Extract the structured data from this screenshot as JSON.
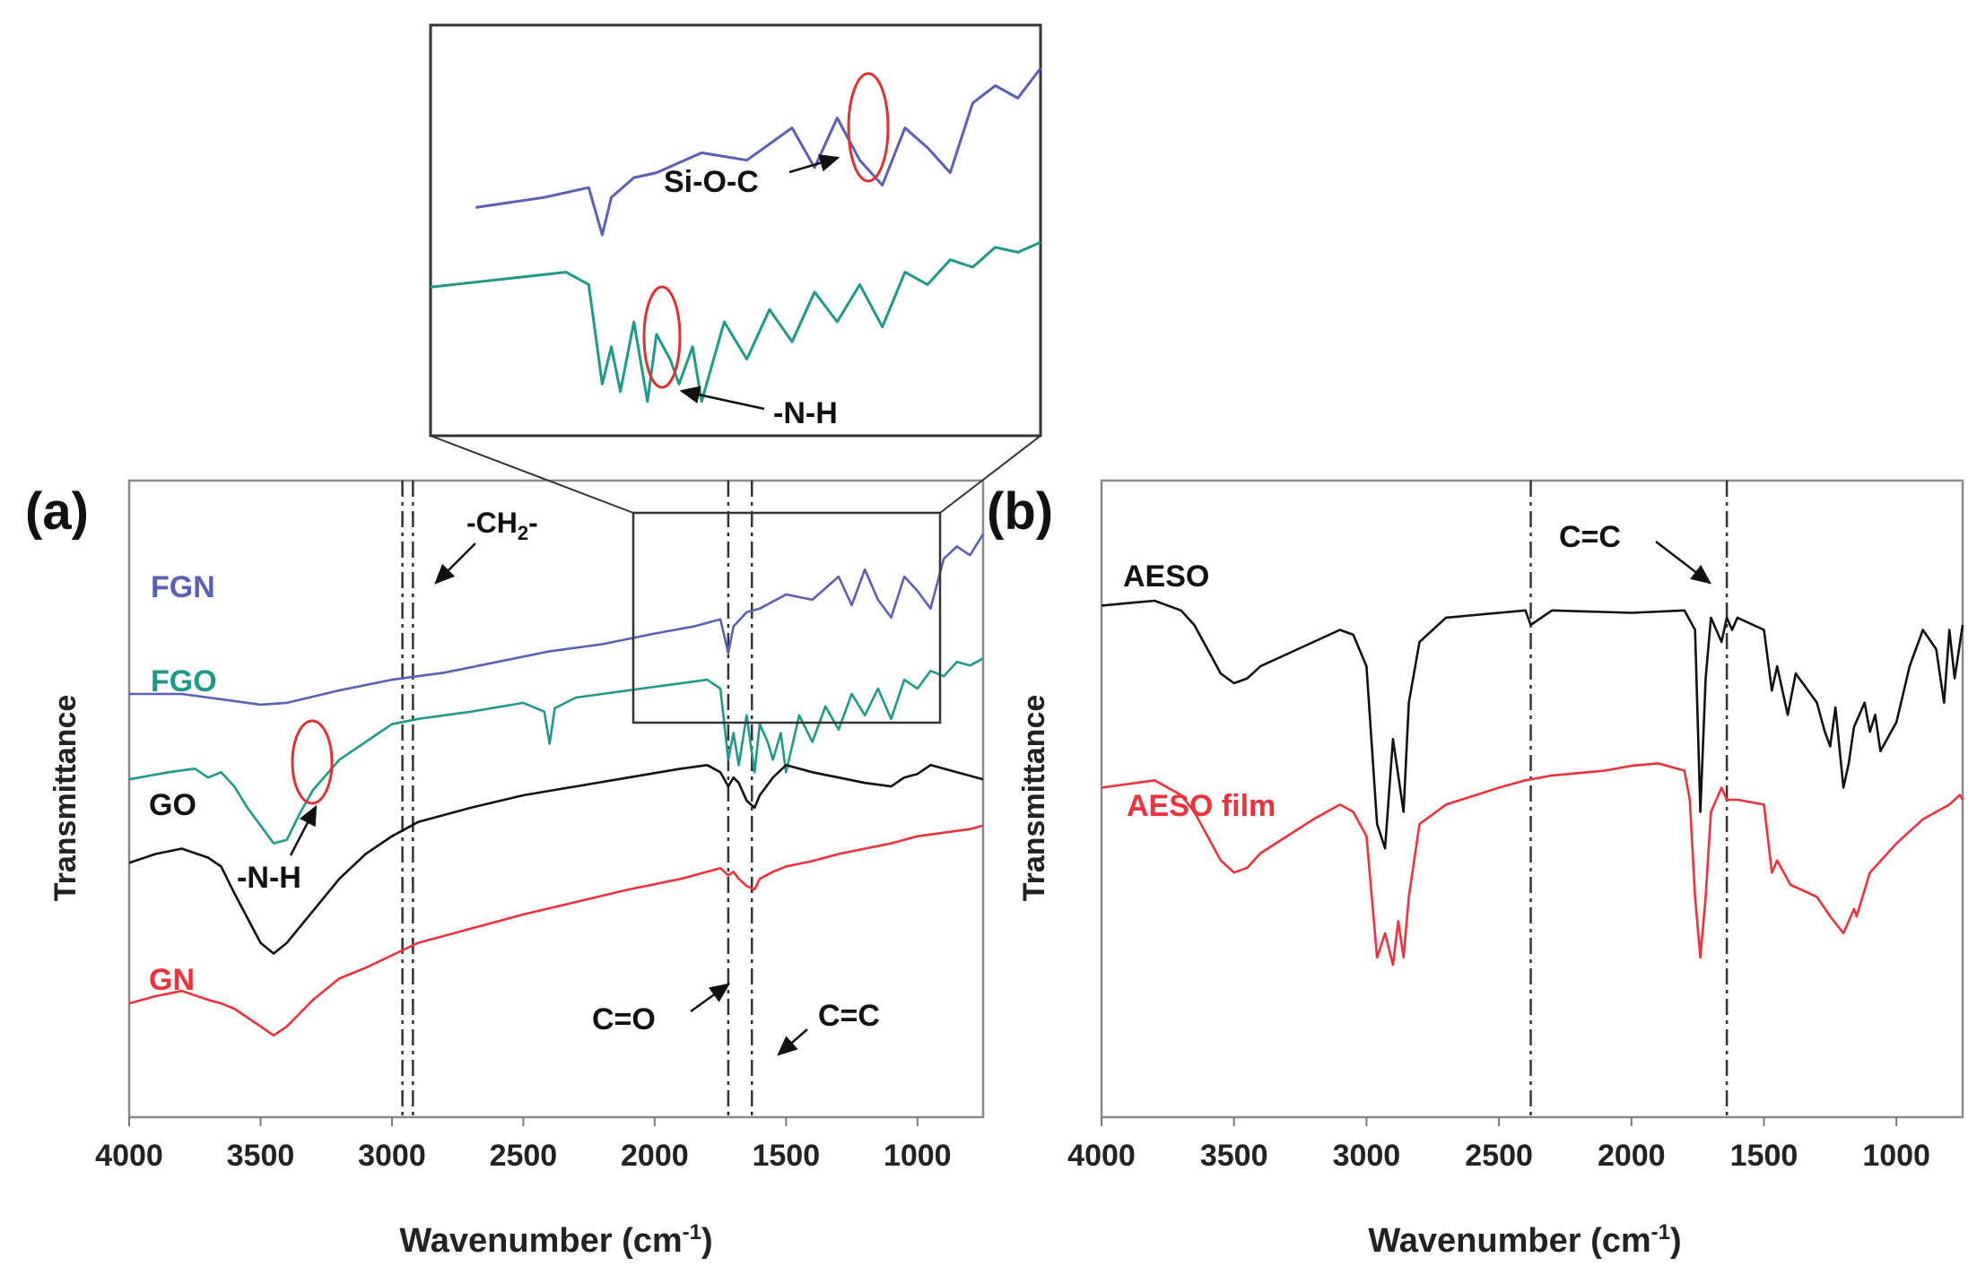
{
  "colors": {
    "FGN": "#5a5fb8",
    "FGO": "#1d9a8a",
    "GO": "#111111",
    "GN": "#f0303a",
    "AESO": "#111111",
    "AESO_film": "#f0303a",
    "axis": "#777777",
    "marker": "#e03030"
  },
  "chart_data": [
    {
      "panel": "(a)",
      "type": "line",
      "xlabel": "Wavenumber (cm",
      "xlabel_sup": "-1",
      "xlabel_close": ")",
      "ylabel": "Transmittance",
      "xlim": [
        4000,
        750
      ],
      "xticks": [
        4000,
        3500,
        3000,
        2500,
        2000,
        1500,
        1000
      ],
      "grid": false,
      "legend": "inline labels",
      "series": [
        {
          "name": "FGN",
          "key": "FGN",
          "x": [
            4000,
            3800,
            3600,
            3500,
            3400,
            3200,
            3000,
            2800,
            2600,
            2400,
            2200,
            2000,
            1850,
            1750,
            1720,
            1700,
            1650,
            1600,
            1500,
            1400,
            1300,
            1250,
            1200,
            1150,
            1100,
            1050,
            1000,
            950,
            900,
            850,
            800,
            750
          ],
          "y": [
            0.02,
            0.02,
            -0.02,
            -0.04,
            -0.03,
            0.04,
            0.1,
            0.14,
            0.2,
            0.26,
            0.3,
            0.36,
            0.4,
            0.44,
            0.25,
            0.4,
            0.48,
            0.5,
            0.58,
            0.55,
            0.68,
            0.52,
            0.72,
            0.55,
            0.45,
            0.68,
            0.6,
            0.5,
            0.78,
            0.85,
            0.8,
            0.92
          ]
        },
        {
          "name": "FGO",
          "key": "FGO",
          "x": [
            4000,
            3850,
            3750,
            3700,
            3650,
            3600,
            3550,
            3500,
            3450,
            3400,
            3350,
            3300,
            3200,
            3100,
            3000,
            2900,
            2700,
            2500,
            2420,
            2400,
            2380,
            2300,
            2100,
            1900,
            1800,
            1750,
            1720,
            1700,
            1680,
            1650,
            1620,
            1600,
            1570,
            1550,
            1520,
            1500,
            1450,
            1400,
            1350,
            1300,
            1250,
            1200,
            1150,
            1100,
            1050,
            1000,
            950,
            900,
            850,
            800,
            750
          ],
          "y": [
            -0.46,
            -0.42,
            -0.4,
            -0.45,
            -0.42,
            -0.5,
            -0.62,
            -0.72,
            -0.82,
            -0.8,
            -0.65,
            -0.52,
            -0.35,
            -0.25,
            -0.15,
            -0.12,
            -0.08,
            -0.03,
            -0.08,
            -0.26,
            -0.06,
            0.0,
            0.04,
            0.08,
            0.1,
            0.05,
            -0.35,
            -0.2,
            -0.38,
            -0.1,
            -0.42,
            -0.15,
            -0.25,
            -0.35,
            -0.2,
            -0.42,
            -0.1,
            -0.25,
            -0.05,
            -0.18,
            0.02,
            -0.1,
            0.05,
            -0.12,
            0.1,
            0.05,
            0.15,
            0.12,
            0.2,
            0.18,
            0.22
          ]
        },
        {
          "name": "GO",
          "key": "GO",
          "x": [
            4000,
            3900,
            3800,
            3700,
            3650,
            3600,
            3500,
            3450,
            3400,
            3300,
            3200,
            3100,
            3000,
            2900,
            2700,
            2500,
            2300,
            2100,
            1900,
            1800,
            1750,
            1720,
            1700,
            1680,
            1650,
            1620,
            1600,
            1550,
            1500,
            1400,
            1300,
            1200,
            1100,
            1050,
            1000,
            950,
            900,
            850,
            800,
            750
          ],
          "y": [
            -0.93,
            -0.88,
            -0.85,
            -0.9,
            -0.95,
            -1.1,
            -1.38,
            -1.44,
            -1.38,
            -1.2,
            -1.02,
            -0.88,
            -0.78,
            -0.7,
            -0.62,
            -0.55,
            -0.5,
            -0.45,
            -0.4,
            -0.38,
            -0.42,
            -0.5,
            -0.45,
            -0.48,
            -0.58,
            -0.62,
            -0.55,
            -0.45,
            -0.38,
            -0.42,
            -0.45,
            -0.48,
            -0.5,
            -0.45,
            -0.43,
            -0.38,
            -0.4,
            -0.42,
            -0.44,
            -0.46
          ]
        },
        {
          "name": "GN",
          "key": "GN",
          "x": [
            4000,
            3900,
            3800,
            3700,
            3650,
            3600,
            3500,
            3450,
            3400,
            3300,
            3200,
            3100,
            3000,
            2900,
            2700,
            2500,
            2300,
            2100,
            1900,
            1800,
            1750,
            1720,
            1700,
            1680,
            1650,
            1620,
            1600,
            1550,
            1500,
            1400,
            1300,
            1200,
            1100,
            1000,
            900,
            800,
            750
          ],
          "y": [
            -1.72,
            -1.68,
            -1.65,
            -1.7,
            -1.72,
            -1.75,
            -1.85,
            -1.9,
            -1.85,
            -1.7,
            -1.58,
            -1.52,
            -1.45,
            -1.38,
            -1.3,
            -1.22,
            -1.15,
            -1.08,
            -1.02,
            -0.98,
            -0.96,
            -1.0,
            -0.98,
            -1.02,
            -1.06,
            -1.08,
            -1.02,
            -0.98,
            -0.95,
            -0.92,
            -0.88,
            -0.85,
            -0.82,
            -0.78,
            -0.76,
            -0.74,
            -0.72
          ]
        }
      ],
      "vlines": [
        2960,
        2920,
        1720,
        1630
      ],
      "inset": {
        "x_range": [
          2100,
          750
        ]
      },
      "annotations": [
        {
          "text": "-CH",
          "sub": "2",
          "tail": "-"
        },
        {
          "text": "-N-H"
        },
        {
          "text": "C=O"
        },
        {
          "text": "C=C"
        },
        {
          "text": "Si-O-C"
        },
        {
          "text": "-N-H"
        }
      ]
    },
    {
      "panel": "(b)",
      "type": "line",
      "xlabel": "Wavenumber (cm",
      "xlabel_sup": "-1",
      "xlabel_close": ")",
      "ylabel": "Transmittance",
      "xlim": [
        4000,
        750
      ],
      "xticks": [
        4000,
        3500,
        3000,
        2500,
        2000,
        1500,
        1000
      ],
      "grid": false,
      "legend": "inline labels",
      "series": [
        {
          "name": "AESO",
          "key": "AESO",
          "x": [
            4000,
            3800,
            3700,
            3650,
            3600,
            3550,
            3500,
            3450,
            3400,
            3300,
            3200,
            3100,
            3050,
            3000,
            2960,
            2930,
            2900,
            2880,
            2860,
            2840,
            2800,
            2700,
            2500,
            2400,
            2380,
            2300,
            2000,
            1800,
            1760,
            1740,
            1720,
            1700,
            1660,
            1640,
            1620,
            1600,
            1500,
            1470,
            1450,
            1410,
            1380,
            1300,
            1270,
            1250,
            1230,
            1200,
            1180,
            1160,
            1120,
            1100,
            1080,
            1060,
            1000,
            950,
            900,
            850,
            820,
            800,
            780,
            750
          ],
          "y": [
            0.0,
            0.02,
            -0.02,
            -0.08,
            -0.18,
            -0.28,
            -0.32,
            -0.3,
            -0.25,
            -0.2,
            -0.15,
            -0.1,
            -0.12,
            -0.25,
            -0.9,
            -1.0,
            -0.55,
            -0.7,
            -0.85,
            -0.4,
            -0.15,
            -0.05,
            -0.03,
            -0.02,
            -0.08,
            -0.02,
            -0.03,
            -0.02,
            -0.1,
            -0.85,
            -0.3,
            -0.05,
            -0.15,
            -0.05,
            -0.1,
            -0.05,
            -0.1,
            -0.35,
            -0.25,
            -0.45,
            -0.28,
            -0.4,
            -0.52,
            -0.58,
            -0.42,
            -0.75,
            -0.65,
            -0.5,
            -0.4,
            -0.52,
            -0.45,
            -0.6,
            -0.48,
            -0.25,
            -0.1,
            -0.18,
            -0.4,
            -0.1,
            -0.3,
            -0.08
          ]
        },
        {
          "name": "AESO film",
          "key": "AESO_film",
          "x": [
            4000,
            3800,
            3700,
            3650,
            3600,
            3550,
            3500,
            3450,
            3400,
            3300,
            3200,
            3100,
            3050,
            3000,
            2960,
            2930,
            2900,
            2880,
            2860,
            2840,
            2800,
            2700,
            2500,
            2400,
            2300,
            2100,
            2000,
            1900,
            1800,
            1780,
            1760,
            1740,
            1720,
            1700,
            1660,
            1640,
            1600,
            1500,
            1470,
            1450,
            1400,
            1300,
            1250,
            1200,
            1180,
            1160,
            1150,
            1100,
            1000,
            900,
            850,
            800,
            760,
            750
          ],
          "y": [
            -0.75,
            -0.72,
            -0.78,
            -0.85,
            -0.95,
            -1.05,
            -1.1,
            -1.08,
            -1.02,
            -0.95,
            -0.88,
            -0.82,
            -0.85,
            -0.95,
            -1.45,
            -1.35,
            -1.48,
            -1.3,
            -1.45,
            -1.2,
            -0.9,
            -0.82,
            -0.75,
            -0.72,
            -0.7,
            -0.68,
            -0.66,
            -0.65,
            -0.68,
            -0.8,
            -1.2,
            -1.45,
            -1.2,
            -0.85,
            -0.75,
            -0.8,
            -0.8,
            -0.82,
            -1.1,
            -1.05,
            -1.15,
            -1.2,
            -1.28,
            -1.35,
            -1.3,
            -1.25,
            -1.28,
            -1.1,
            -0.98,
            -0.88,
            -0.85,
            -0.82,
            -0.78,
            -0.8
          ]
        }
      ],
      "vlines": [
        2380,
        1640
      ],
      "annotations": [
        {
          "text": "C=C"
        }
      ]
    }
  ]
}
